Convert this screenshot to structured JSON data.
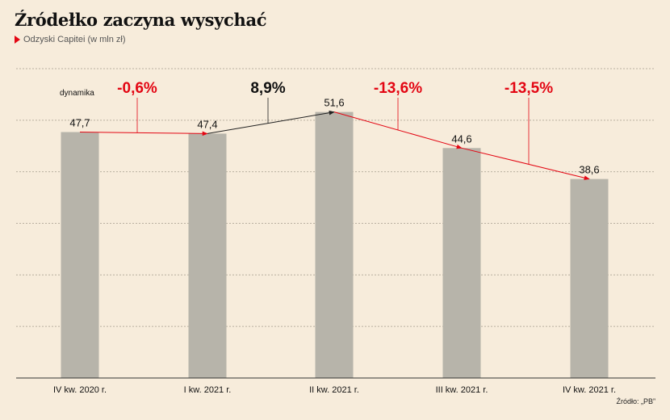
{
  "title": "Źródełko zaczyna wysychać",
  "subtitle": "Odzyski Capitei (w mln zł)",
  "source": "Źródło: „PB”",
  "dynamics_label": "dynamika",
  "colors": {
    "background": "#f7ecdb",
    "bar": "#b7b4aa",
    "negative": "#e30613",
    "positive": "#222222",
    "grid": "#b9b0a0"
  },
  "chart_data": {
    "type": "bar",
    "title": "Źródełko zaczyna wysychać",
    "subtitle": "Odzyski Capitei (w mln zł)",
    "categories": [
      "IV kw. 2020 r.",
      "I kw. 2021 r.",
      "II kw. 2021 r.",
      "III kw. 2021 r.",
      "IV kw. 2021 r."
    ],
    "values": [
      47.7,
      47.4,
      51.6,
      44.6,
      38.6
    ],
    "value_labels": [
      "47,7",
      "47,4",
      "51,6",
      "44,6",
      "38,6"
    ],
    "changes": [
      {
        "label": "-0,6%",
        "value": -0.6,
        "direction": "down"
      },
      {
        "label": "8,9%",
        "value": 8.9,
        "direction": "up"
      },
      {
        "label": "-13,6%",
        "value": -13.6,
        "direction": "down"
      },
      {
        "label": "-13,5%",
        "value": -13.5,
        "direction": "down"
      }
    ],
    "ylim": [
      0,
      60
    ],
    "grid": true,
    "xlabel": "",
    "ylabel": ""
  }
}
